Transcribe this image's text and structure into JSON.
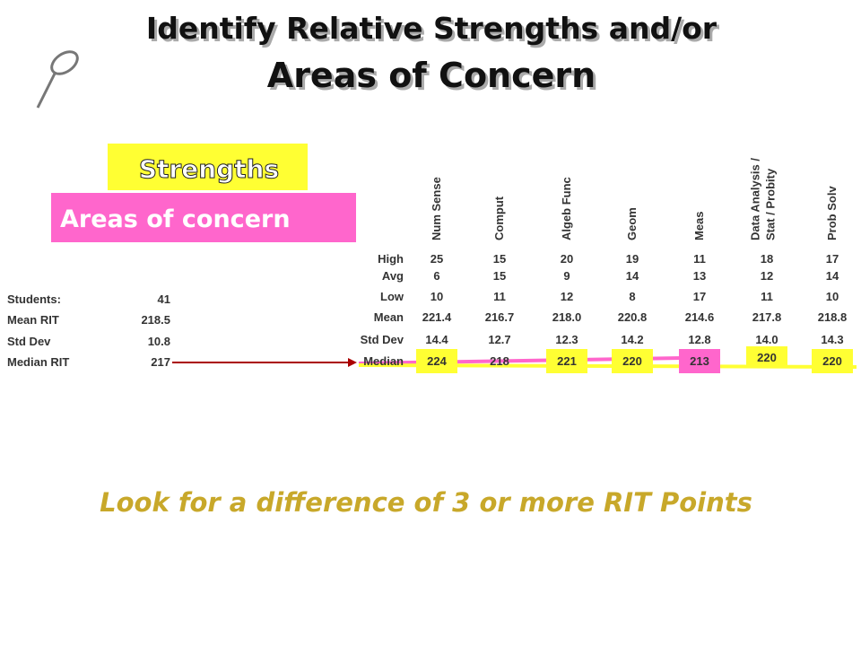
{
  "title": [
    "Identify Relative Strengths and/or",
    "Areas of Concern"
  ],
  "legend": {
    "strengths": "Strengths",
    "concerns": "Areas of concern"
  },
  "summary": {
    "rows": [
      [
        "Students:",
        "41"
      ],
      [
        "Mean RIT",
        "218.5"
      ],
      [
        "Std Dev",
        "10.8"
      ],
      [
        "Median RIT",
        "217"
      ]
    ]
  },
  "goals": {
    "columns": [
      [
        "Num Sense"
      ],
      [
        "Comput"
      ],
      [
        "Algeb Func"
      ],
      [
        "Geom"
      ],
      [
        "Meas"
      ],
      [
        "Data Analysis /",
        "Stat / Probity"
      ],
      [
        "Prob Solv"
      ]
    ],
    "row_labels": [
      "High",
      "Avg",
      "Low",
      "Mean",
      "Std Dev",
      "Median"
    ],
    "rows": [
      [
        "25",
        "15",
        "20",
        "19",
        "11",
        "18",
        "17"
      ],
      [
        "6",
        "15",
        "9",
        "14",
        "13",
        "12",
        "14"
      ],
      [
        "10",
        "11",
        "12",
        "8",
        "17",
        "11",
        "10"
      ],
      [
        "221.4",
        "216.7",
        "218.0",
        "220.8",
        "214.6",
        "217.8",
        "218.8"
      ],
      [
        "14.4",
        "12.7",
        "12.3",
        "14.2",
        "12.8",
        "14.0",
        "14.3"
      ],
      [
        "224",
        "218",
        "221",
        "220",
        "213",
        "220",
        "220"
      ]
    ],
    "median_highlight": [
      "strength",
      null,
      "strength",
      "strength",
      "concern",
      "strength",
      "strength"
    ],
    "colors": {
      "strength": "#ffff33",
      "concern": "#ff66cc"
    }
  },
  "footer": "Look for a difference of 3 or more RIT Points"
}
